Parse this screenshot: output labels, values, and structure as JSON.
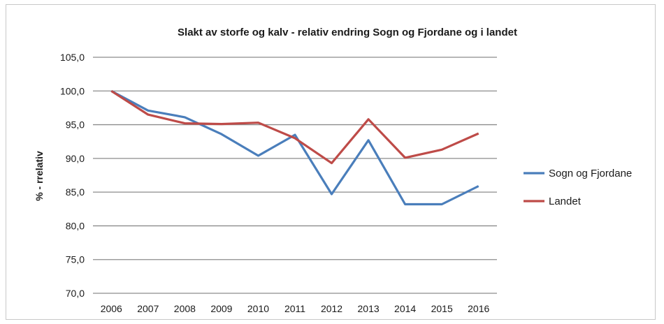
{
  "chart_data": {
    "type": "line",
    "title": "Slakt av storfe og kalv - relativ endring Sogn og Fjordane og i landet",
    "xlabel": "",
    "ylabel": "% - rrelativ",
    "categories": [
      "2006",
      "2007",
      "2008",
      "2009",
      "2010",
      "2011",
      "2012",
      "2013",
      "2014",
      "2015",
      "2016"
    ],
    "ylim": [
      70,
      105
    ],
    "yticks": [
      "70,0",
      "75,0",
      "80,0",
      "85,0",
      "90,0",
      "95,0",
      "100,0",
      "105,0"
    ],
    "grid": true,
    "legend_position": "right",
    "series": [
      {
        "name": "Sogn og Fjordane",
        "color": "#4a7ebb",
        "values": [
          100.0,
          97.1,
          96.1,
          93.6,
          90.4,
          93.5,
          84.7,
          92.7,
          83.2,
          83.2,
          85.9
        ]
      },
      {
        "name": "Landet",
        "color": "#be4b48",
        "values": [
          100.0,
          96.5,
          95.2,
          95.1,
          95.3,
          93.0,
          89.3,
          95.8,
          90.1,
          91.3,
          93.7
        ]
      }
    ]
  }
}
